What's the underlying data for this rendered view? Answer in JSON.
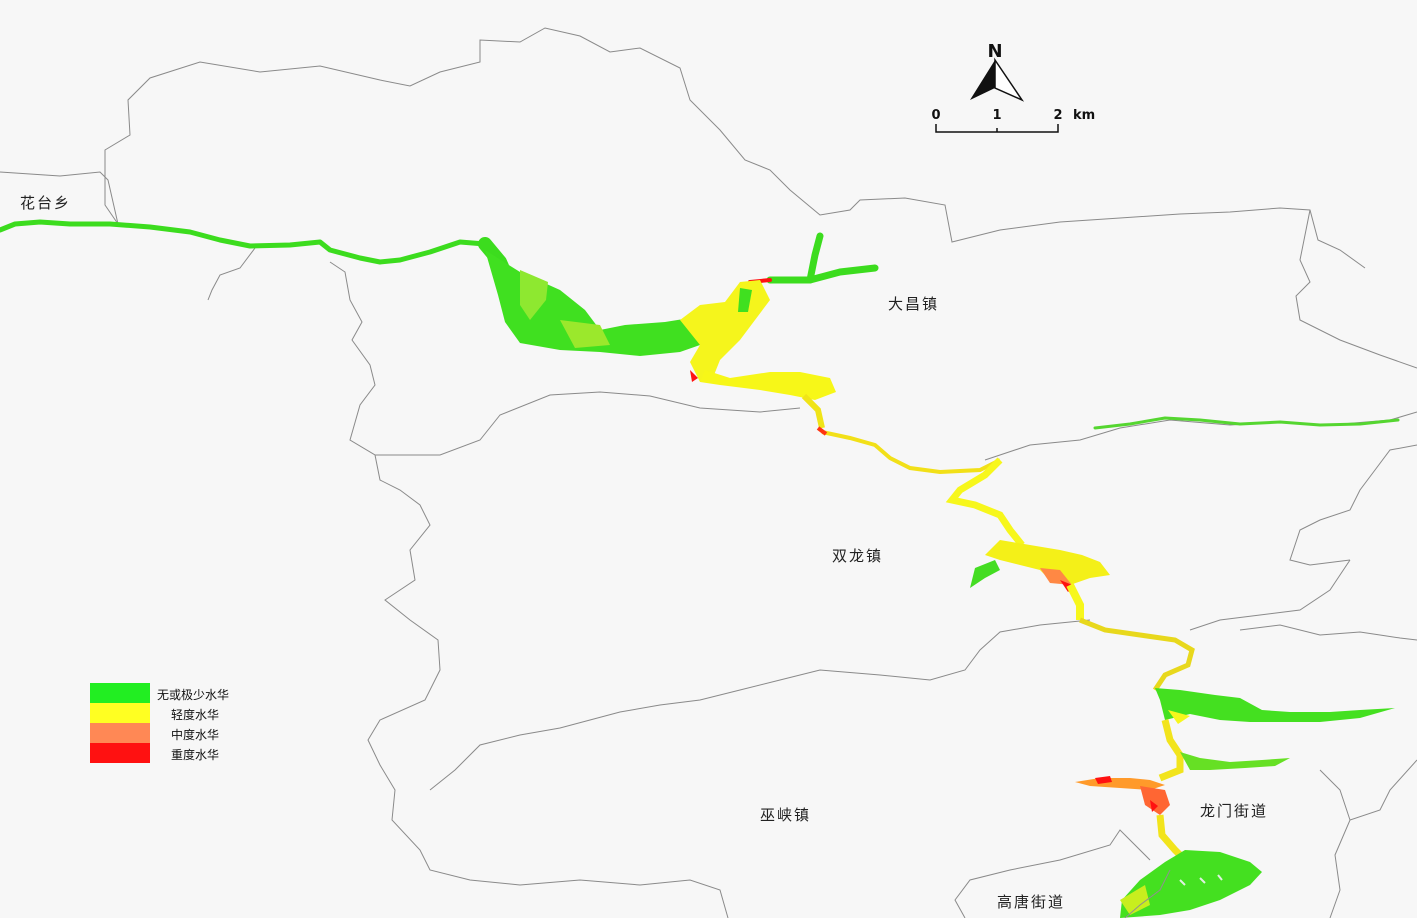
{
  "north_arrow": {
    "label": "N",
    "icon": "north-arrow-icon"
  },
  "scale_bar": {
    "ticks": [
      "0",
      "1",
      "2"
    ],
    "unit": "km"
  },
  "towns": {
    "huatai": "花台乡",
    "dachang": "大昌镇",
    "shuanglong": "双龙镇",
    "wuxia": "巫峡镇",
    "longmen": "龙门街道",
    "gaotang": "高唐街道"
  },
  "legend": {
    "items": [
      {
        "label": "无或极少水华",
        "color": "#22ee22"
      },
      {
        "label": "轻度水华",
        "color": "#ffff22"
      },
      {
        "label": "中度水华",
        "color": "#ff8855"
      },
      {
        "label": "重度水华",
        "color": "#ff1111"
      }
    ]
  }
}
